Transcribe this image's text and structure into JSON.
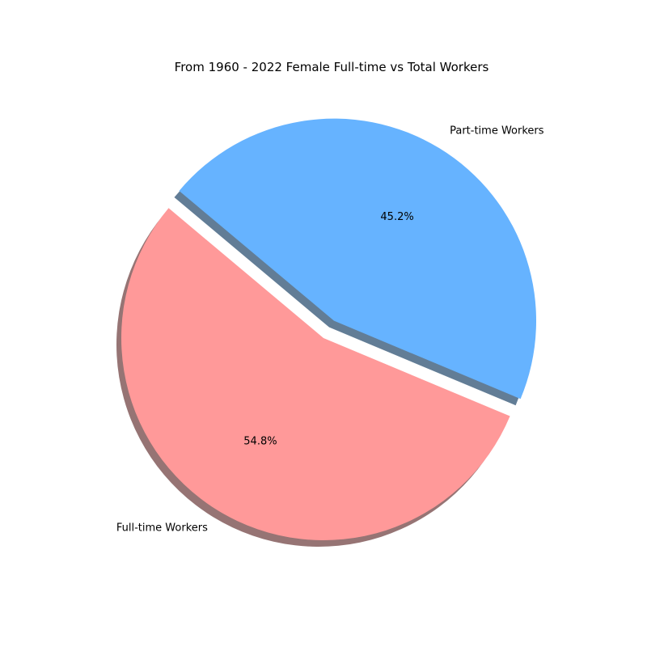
{
  "chart_data": {
    "type": "pie",
    "title": "From 1960 - 2022 Female Full-time vs Total Workers",
    "slices": [
      {
        "label": "Full-time Workers",
        "value": 54.8,
        "pct_label": "54.8%",
        "color": "#ff9999",
        "exploded": false
      },
      {
        "label": "Part-time Workers",
        "value": 45.2,
        "pct_label": "45.2%",
        "color": "#66b3ff",
        "exploded": true
      }
    ],
    "shadow": true,
    "legend": "none"
  }
}
